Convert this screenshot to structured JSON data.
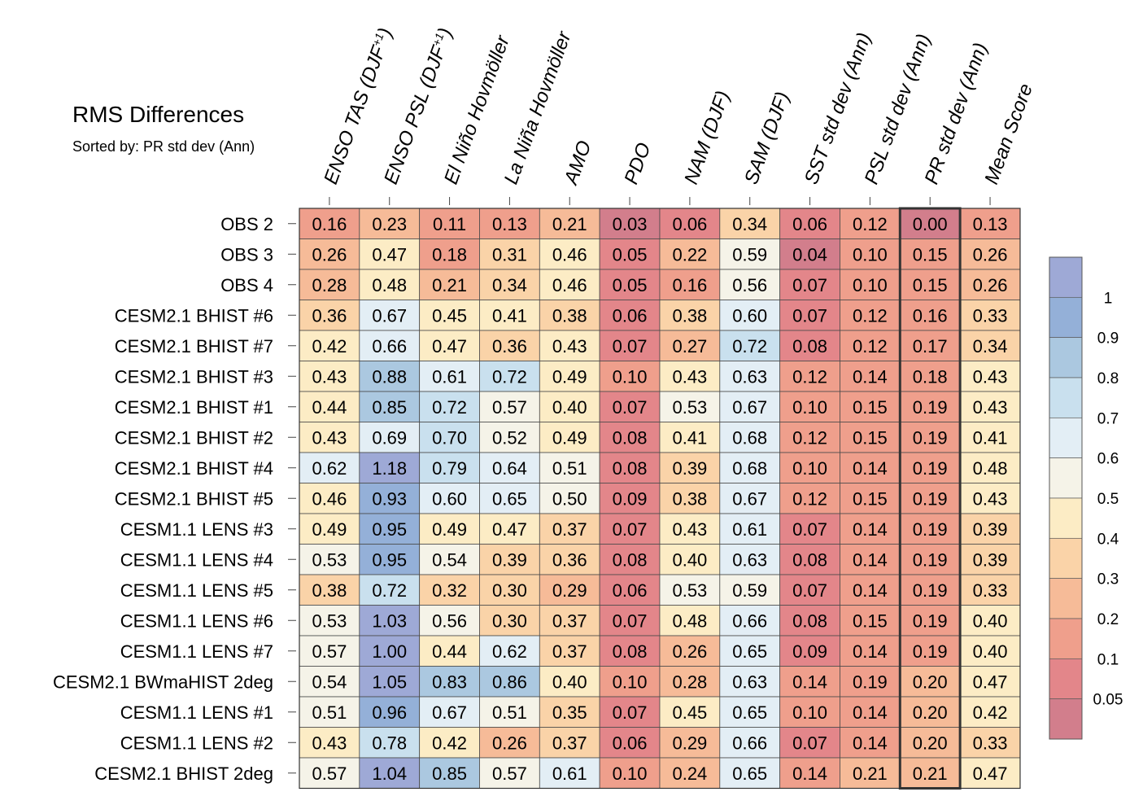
{
  "title": "RMS Differences",
  "subtitle": "Sorted by: PR std dev (Ann)",
  "chart_data": {
    "type": "heatmap",
    "title": "RMS Differences",
    "subtitle": "Sorted by: PR std dev (Ann)",
    "columns": [
      {
        "main": "ENSO TAS (DJF",
        "sup": "+1",
        "tail": ")"
      },
      {
        "main": "ENSO PSL (DJF",
        "sup": "+1",
        "tail": ")"
      },
      {
        "main": "El Niño Hovmöller"
      },
      {
        "main": "La Niña Hovmöller"
      },
      {
        "main": "AMO"
      },
      {
        "main": "PDO"
      },
      {
        "main": "NAM (DJF)"
      },
      {
        "main": "SAM (DJF)"
      },
      {
        "main": "SST std dev (Ann)"
      },
      {
        "main": "PSL std dev (Ann)"
      },
      {
        "main": "PR std dev (Ann)"
      },
      {
        "main": "Mean Score"
      }
    ],
    "highlighted_column": "PR std dev (Ann)",
    "rows": [
      {
        "label": "OBS 2",
        "values": [
          "0.16",
          "0.23",
          "0.11",
          "0.13",
          "0.21",
          "0.03",
          "0.06",
          "0.34",
          "0.06",
          "0.12",
          "0.00",
          "0.13"
        ]
      },
      {
        "label": "OBS 3",
        "values": [
          "0.26",
          "0.47",
          "0.18",
          "0.31",
          "0.46",
          "0.05",
          "0.22",
          "0.59",
          "0.04",
          "0.10",
          "0.15",
          "0.26"
        ]
      },
      {
        "label": "OBS 4",
        "values": [
          "0.28",
          "0.48",
          "0.21",
          "0.34",
          "0.46",
          "0.05",
          "0.16",
          "0.56",
          "0.07",
          "0.10",
          "0.15",
          "0.26"
        ]
      },
      {
        "label": "CESM2.1 BHIST #6",
        "values": [
          "0.36",
          "0.67",
          "0.45",
          "0.41",
          "0.38",
          "0.06",
          "0.38",
          "0.60",
          "0.07",
          "0.12",
          "0.16",
          "0.33"
        ]
      },
      {
        "label": "CESM2.1 BHIST #7",
        "values": [
          "0.42",
          "0.66",
          "0.47",
          "0.36",
          "0.43",
          "0.07",
          "0.27",
          "0.72",
          "0.08",
          "0.12",
          "0.17",
          "0.34"
        ]
      },
      {
        "label": "CESM2.1 BHIST #3",
        "values": [
          "0.43",
          "0.88",
          "0.61",
          "0.72",
          "0.49",
          "0.10",
          "0.43",
          "0.63",
          "0.12",
          "0.14",
          "0.18",
          "0.43"
        ]
      },
      {
        "label": "CESM2.1 BHIST #1",
        "values": [
          "0.44",
          "0.85",
          "0.72",
          "0.57",
          "0.40",
          "0.07",
          "0.53",
          "0.67",
          "0.10",
          "0.15",
          "0.19",
          "0.43"
        ]
      },
      {
        "label": "CESM2.1 BHIST #2",
        "values": [
          "0.43",
          "0.69",
          "0.70",
          "0.52",
          "0.49",
          "0.08",
          "0.41",
          "0.68",
          "0.12",
          "0.15",
          "0.19",
          "0.41"
        ]
      },
      {
        "label": "CESM2.1 BHIST #4",
        "values": [
          "0.62",
          "1.18",
          "0.79",
          "0.64",
          "0.51",
          "0.08",
          "0.39",
          "0.68",
          "0.10",
          "0.14",
          "0.19",
          "0.48"
        ]
      },
      {
        "label": "CESM2.1 BHIST #5",
        "values": [
          "0.46",
          "0.93",
          "0.60",
          "0.65",
          "0.50",
          "0.09",
          "0.38",
          "0.67",
          "0.12",
          "0.15",
          "0.19",
          "0.43"
        ]
      },
      {
        "label": "CESM1.1 LENS #3",
        "values": [
          "0.49",
          "0.95",
          "0.49",
          "0.47",
          "0.37",
          "0.07",
          "0.43",
          "0.61",
          "0.07",
          "0.14",
          "0.19",
          "0.39"
        ]
      },
      {
        "label": "CESM1.1 LENS #4",
        "values": [
          "0.53",
          "0.95",
          "0.54",
          "0.39",
          "0.36",
          "0.08",
          "0.40",
          "0.63",
          "0.08",
          "0.14",
          "0.19",
          "0.39"
        ]
      },
      {
        "label": "CESM1.1 LENS #5",
        "values": [
          "0.38",
          "0.72",
          "0.32",
          "0.30",
          "0.29",
          "0.06",
          "0.53",
          "0.59",
          "0.07",
          "0.14",
          "0.19",
          "0.33"
        ]
      },
      {
        "label": "CESM1.1 LENS #6",
        "values": [
          "0.53",
          "1.03",
          "0.56",
          "0.30",
          "0.37",
          "0.07",
          "0.48",
          "0.66",
          "0.08",
          "0.15",
          "0.19",
          "0.40"
        ]
      },
      {
        "label": "CESM1.1 LENS #7",
        "values": [
          "0.57",
          "1.00",
          "0.44",
          "0.62",
          "0.37",
          "0.08",
          "0.26",
          "0.65",
          "0.09",
          "0.14",
          "0.19",
          "0.40"
        ]
      },
      {
        "label": "CESM2.1 BWmaHIST 2deg",
        "values": [
          "0.54",
          "1.05",
          "0.83",
          "0.86",
          "0.40",
          "0.10",
          "0.28",
          "0.63",
          "0.14",
          "0.19",
          "0.20",
          "0.47"
        ]
      },
      {
        "label": "CESM1.1 LENS #1",
        "values": [
          "0.51",
          "0.96",
          "0.67",
          "0.51",
          "0.35",
          "0.07",
          "0.45",
          "0.65",
          "0.10",
          "0.14",
          "0.20",
          "0.42"
        ]
      },
      {
        "label": "CESM1.1 LENS #2",
        "values": [
          "0.43",
          "0.78",
          "0.42",
          "0.26",
          "0.37",
          "0.06",
          "0.29",
          "0.66",
          "0.07",
          "0.14",
          "0.20",
          "0.33"
        ]
      },
      {
        "label": "CESM2.1 BHIST 2deg",
        "values": [
          "0.57",
          "1.04",
          "0.85",
          "0.57",
          "0.61",
          "0.10",
          "0.24",
          "0.65",
          "0.14",
          "0.21",
          "0.21",
          "0.47"
        ]
      }
    ],
    "colorbar": {
      "labels": [
        "1",
        "0.9",
        "0.8",
        "0.7",
        "0.6",
        "0.5",
        "0.4",
        "0.3",
        "0.2",
        "0.1",
        "0.05"
      ],
      "bounds": [
        0.05,
        0.1,
        0.2,
        0.3,
        0.4,
        0.5,
        0.6,
        0.7,
        0.8,
        0.9,
        1
      ],
      "colors_bottom_to_top": [
        "#d27e8c",
        "#e3868a",
        "#ef9f8c",
        "#f6bb98",
        "#fad3a8",
        "#fcecc5",
        "#f5f3e8",
        "#e3eef5",
        "#c9e0ee",
        "#abc8e0",
        "#94b0d8",
        "#9ea9d6"
      ]
    }
  }
}
